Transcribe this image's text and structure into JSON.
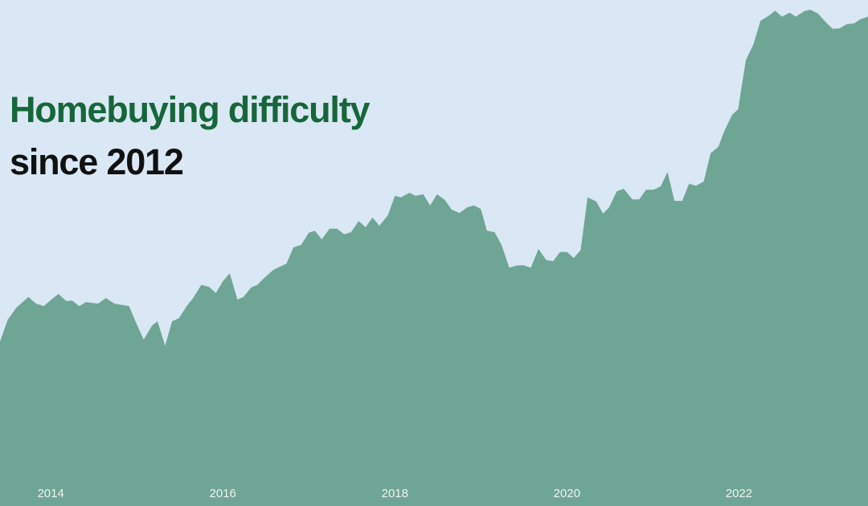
{
  "chart_data": {
    "type": "area",
    "title": "Homebuying difficulty",
    "subtitle": "since 2012",
    "title_color": "#17663a",
    "subtitle_color": "#111111",
    "background": "#d9e8f4",
    "x": [
      2013.41,
      2013.5,
      2013.6,
      2013.74,
      2013.83,
      2013.92,
      2014.02,
      2014.09,
      2014.18,
      2014.25,
      2014.33,
      2014.41,
      2014.55,
      2014.64,
      2014.74,
      2014.91,
      2015.0,
      2015.08,
      2015.18,
      2015.24,
      2015.33,
      2015.41,
      2015.49,
      2015.58,
      2015.65,
      2015.75,
      2015.84,
      2015.92,
      2016.0,
      2016.08,
      2016.17,
      2016.24,
      2016.33,
      2016.4,
      2016.49,
      2016.59,
      2016.74,
      2016.82,
      2016.91,
      2017.0,
      2017.07,
      2017.15,
      2017.24,
      2017.33,
      2017.41,
      2017.49,
      2017.58,
      2017.66,
      2017.74,
      2017.82,
      2017.92,
      2018.0,
      2018.07,
      2018.17,
      2018.24,
      2018.33,
      2018.41,
      2018.49,
      2018.58,
      2018.66,
      2018.75,
      2018.84,
      2018.92,
      2019.0,
      2019.07,
      2019.16,
      2019.24,
      2019.33,
      2019.41,
      2019.49,
      2019.58,
      2019.67,
      2019.76,
      2019.84,
      2019.92,
      2020.0,
      2020.08,
      2020.16,
      2020.24,
      2020.34,
      2020.42,
      2020.49,
      2020.58,
      2020.66,
      2020.76,
      2020.84,
      2020.92,
      2021.01,
      2021.09,
      2021.17,
      2021.25,
      2021.34,
      2021.42,
      2021.5,
      2021.59,
      2021.67,
      2021.76,
      2021.83,
      2021.92,
      2021.99,
      2022.08,
      2022.17,
      2022.25,
      2022.34,
      2022.42,
      2022.5,
      2022.59,
      2022.66,
      2022.76,
      2022.83,
      2022.92,
      2023.01,
      2023.09,
      2023.17,
      2023.25,
      2023.34,
      2023.41,
      2023.5
    ],
    "values": [
      32.5,
      36.8,
      39.2,
      41.3,
      40.0,
      39.5,
      41.0,
      41.9,
      40.5,
      40.6,
      39.5,
      40.3,
      40.0,
      41.1,
      40.0,
      39.5,
      35.9,
      32.9,
      35.7,
      36.5,
      31.7,
      36.5,
      37.1,
      39.5,
      41.0,
      43.7,
      43.3,
      42.1,
      44.4,
      46.0,
      40.8,
      41.3,
      43.2,
      43.7,
      45.2,
      46.7,
      47.9,
      51.1,
      51.6,
      54.0,
      54.4,
      52.7,
      54.8,
      54.8,
      53.7,
      54.1,
      56.3,
      55.1,
      57.0,
      55.4,
      57.5,
      61.3,
      61.0,
      61.9,
      61.3,
      61.6,
      59.4,
      61.6,
      60.5,
      58.6,
      57.9,
      59.0,
      59.4,
      58.7,
      54.4,
      54.1,
      51.6,
      47.1,
      47.5,
      47.6,
      47.1,
      50.8,
      48.6,
      48.4,
      50.2,
      50.2,
      49.0,
      50.6,
      61.0,
      60.2,
      57.8,
      59.0,
      62.2,
      62.7,
      60.6,
      60.6,
      62.5,
      62.5,
      63.2,
      66.0,
      60.3,
      60.3,
      63.7,
      63.3,
      64.1,
      69.7,
      71.0,
      74.1,
      77.3,
      78.4,
      88.1,
      91.3,
      95.9,
      96.8,
      97.9,
      96.7,
      97.5,
      96.7,
      97.8,
      98.1,
      97.3,
      95.6,
      94.3,
      94.4,
      95.2,
      95.4,
      96.2,
      96.7
    ],
    "color": "#6fa594",
    "tick_label_color": "#eef4f1",
    "xlim": [
      2013.41,
      2023.5
    ],
    "xticks": [
      2014,
      2016,
      2018,
      2020,
      2022
    ],
    "ylim": [
      0,
      100
    ]
  }
}
